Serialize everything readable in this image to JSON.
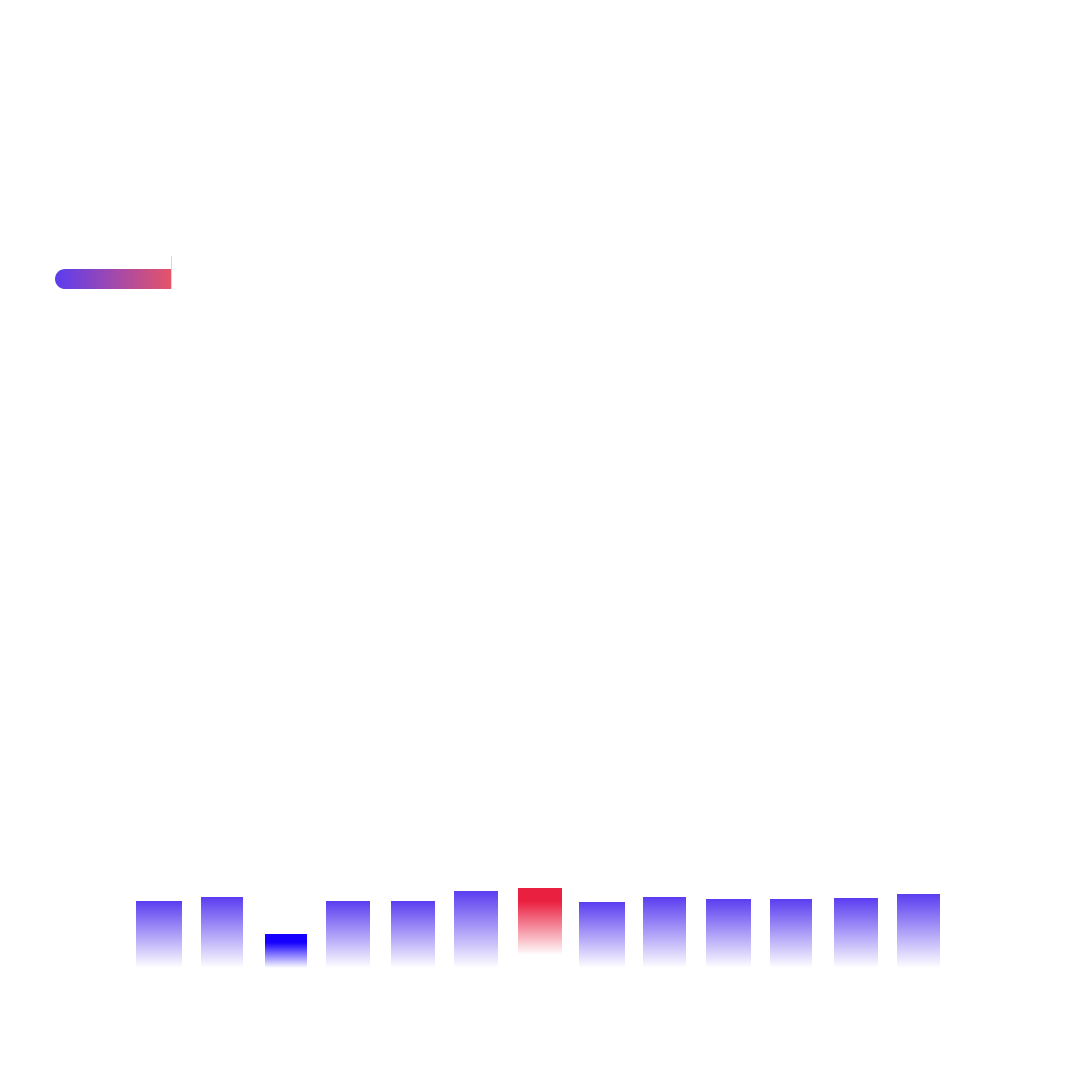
{
  "progress": {
    "gradient_start": "#5b3df0",
    "gradient_end": "#e5546a",
    "marker_color": "#d8d8d8"
  },
  "bars": {
    "values": [
      67,
      71,
      34,
      67,
      67,
      77,
      67,
      66,
      71,
      69,
      69,
      70,
      74
    ],
    "highlight_index": 6,
    "dark_index": 2,
    "colors": {
      "normal": "#5b3df0",
      "dark": "#1500ff",
      "highlight": "#ea2040"
    }
  }
}
